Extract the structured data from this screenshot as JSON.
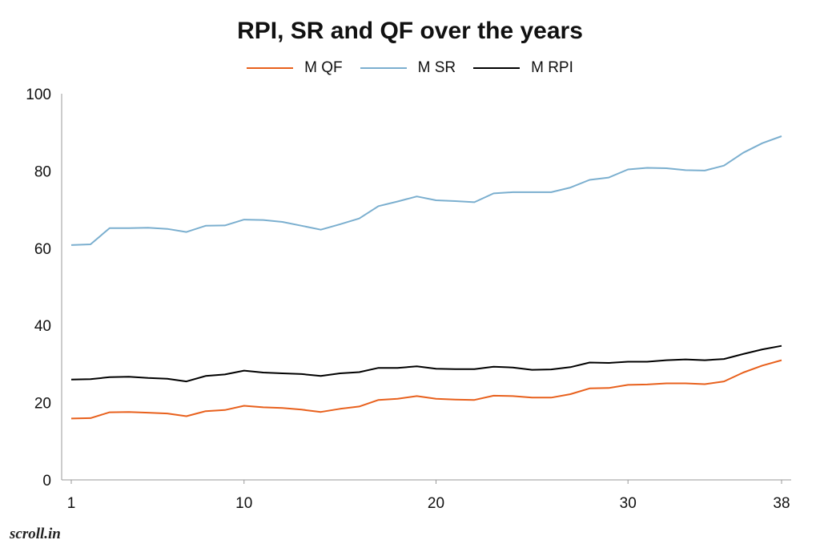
{
  "chart_data": {
    "type": "line",
    "title": "RPI, SR and QF over the years",
    "xlabel": "",
    "ylabel": "",
    "x": [
      1,
      2,
      3,
      4,
      5,
      6,
      7,
      8,
      9,
      10,
      11,
      12,
      13,
      14,
      15,
      16,
      17,
      18,
      19,
      20,
      21,
      22,
      23,
      24,
      25,
      26,
      27,
      28,
      29,
      30,
      31,
      32,
      33,
      34,
      35,
      36,
      37,
      38
    ],
    "xticks": [
      1,
      10,
      20,
      30,
      38
    ],
    "yticks": [
      0,
      20,
      40,
      60,
      80,
      100
    ],
    "xlim": [
      1,
      38
    ],
    "ylim": [
      0,
      100
    ],
    "grid": false,
    "legend_position": "top",
    "series": [
      {
        "name": "M QF",
        "color": "#E8601C",
        "values": [
          15.9,
          16.0,
          17.5,
          17.6,
          17.4,
          17.2,
          16.5,
          17.8,
          18.1,
          19.2,
          18.8,
          18.6,
          18.2,
          17.6,
          18.4,
          19.0,
          20.7,
          21.0,
          21.7,
          21.0,
          20.8,
          20.7,
          21.8,
          21.7,
          21.3,
          21.3,
          22.2,
          23.7,
          23.8,
          24.6,
          24.7,
          25.0,
          25.0,
          24.8,
          25.5,
          27.8,
          29.6,
          31.0
        ]
      },
      {
        "name": "M SR",
        "color": "#7BAFCF",
        "values": [
          60.8,
          61.0,
          65.2,
          65.2,
          65.3,
          65.0,
          64.2,
          65.8,
          65.9,
          67.4,
          67.3,
          66.8,
          65.8,
          64.8,
          66.2,
          67.7,
          70.9,
          72.1,
          73.4,
          72.4,
          72.2,
          71.9,
          74.2,
          74.5,
          74.5,
          74.5,
          75.7,
          77.7,
          78.3,
          80.4,
          80.8,
          80.7,
          80.2,
          80.1,
          81.4,
          84.7,
          87.2,
          89.0
        ]
      },
      {
        "name": "M RPI",
        "color": "#000000",
        "values": [
          26.0,
          26.1,
          26.6,
          26.7,
          26.4,
          26.2,
          25.5,
          26.9,
          27.3,
          28.3,
          27.8,
          27.6,
          27.4,
          26.9,
          27.6,
          27.9,
          29.0,
          29.0,
          29.4,
          28.8,
          28.7,
          28.7,
          29.3,
          29.1,
          28.5,
          28.6,
          29.2,
          30.4,
          30.3,
          30.6,
          30.6,
          31.0,
          31.2,
          31.0,
          31.3,
          32.6,
          33.8,
          34.7
        ]
      }
    ]
  },
  "branding": {
    "logo_text": "scroll.in"
  }
}
